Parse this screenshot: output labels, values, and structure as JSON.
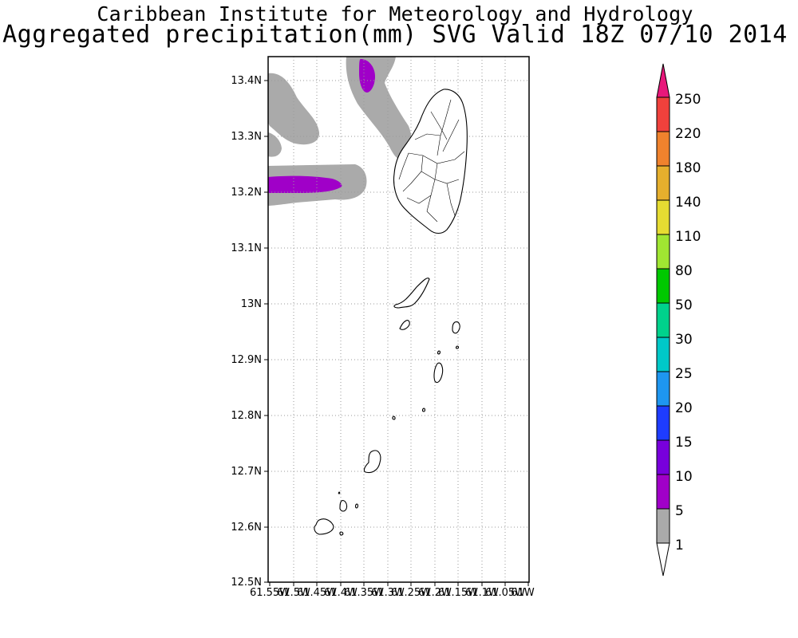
{
  "title": "Caribbean Institute for Meteorology and Hydrology",
  "subtitle": "Aggregated precipitation(mm) SVG Valid 18Z 07/10 2014",
  "map": {
    "lat_range": [
      12.5,
      13.44
    ],
    "lon_range": [
      -61.55,
      -61.0
    ],
    "lat_ticks": [
      "13.4N",
      "13.3N",
      "13.2N",
      "13.1N",
      "13N",
      "12.9N",
      "12.8N",
      "12.7N",
      "12.6N",
      "12.5N"
    ],
    "lon_ticks": [
      "61.55W",
      "61.5W",
      "61.45W",
      "61.4W",
      "61.35W",
      "61.3W",
      "61.25W",
      "61.2W",
      "61.15W",
      "61.1W",
      "61.05W",
      "61W"
    ],
    "grid": "dotted"
  },
  "colorbar": {
    "labels": [
      "250",
      "220",
      "180",
      "140",
      "110",
      "80",
      "50",
      "30",
      "25",
      "20",
      "15",
      "10",
      "5",
      "1"
    ],
    "colors": {
      "above_250": "#e8177a",
      "220-250": "#f0413c",
      "180-220": "#f0822d",
      "140-180": "#e6af2d",
      "110-140": "#e6dc32",
      "80-110": "#a0e632",
      "50-80": "#00c800",
      "30-50": "#00d28c",
      "25-30": "#00c8c8",
      "20-25": "#1e96f0",
      "15-20": "#1e3cff",
      "10-15": "#7800dc",
      "5-10": "#a000c8",
      "1-5": "#aaaaaa"
    }
  }
}
